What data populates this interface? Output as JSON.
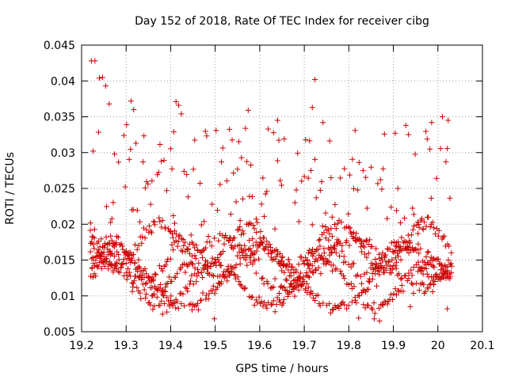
{
  "chart_data": {
    "type": "scatter",
    "title": "Day 152 of 2018, Rate Of TEC Index for receiver cibg",
    "xlabel": "GPS time / hours",
    "ylabel": "ROTI / TECUs",
    "xlim": [
      19.2,
      20.1
    ],
    "ylim": [
      0.005,
      0.045
    ],
    "xticks": [
      19.2,
      19.3,
      19.4,
      19.5,
      19.6,
      19.7,
      19.8,
      19.9,
      20,
      20.1
    ],
    "xtick_labels": [
      "19.2",
      "19.3",
      "19.4",
      "19.5",
      "19.6",
      "19.7",
      "19.8",
      "19.9",
      "20",
      "20.1"
    ],
    "yticks": [
      0.005,
      0.01,
      0.015,
      0.02,
      0.025,
      0.03,
      0.035,
      0.04,
      0.045
    ],
    "ytick_labels": [
      "0.005",
      "0.01",
      "0.015",
      "0.02",
      "0.025",
      "0.03",
      "0.035",
      "0.04",
      "0.045"
    ],
    "grid": "dotted",
    "marker": "plus",
    "marker_color": "#cc0000",
    "series": [
      {
        "name": "ROTI",
        "x_range": [
          19.22,
          20.03
        ],
        "x_step_hours": 0.003,
        "points": [
          {
            "x": 19.222,
            "y": 0.0428
          },
          {
            "x": 19.23,
            "y": 0.0428
          },
          {
            "x": 19.24,
            "y": 0.0404
          },
          {
            "x": 19.247,
            "y": 0.0405
          },
          {
            "x": 19.254,
            "y": 0.0393
          },
          {
            "x": 19.262,
            "y": 0.0368
          },
          {
            "x": 19.301,
            "y": 0.0339
          },
          {
            "x": 19.311,
            "y": 0.0372
          },
          {
            "x": 19.317,
            "y": 0.036
          },
          {
            "x": 19.322,
            "y": 0.0313
          },
          {
            "x": 19.338,
            "y": 0.0287
          },
          {
            "x": 19.412,
            "y": 0.0371
          },
          {
            "x": 19.418,
            "y": 0.0366
          },
          {
            "x": 19.424,
            "y": 0.0354
          },
          {
            "x": 19.407,
            "y": 0.0329
          },
          {
            "x": 19.574,
            "y": 0.0359
          },
          {
            "x": 19.64,
            "y": 0.0345
          },
          {
            "x": 19.718,
            "y": 0.0363
          },
          {
            "x": 19.724,
            "y": 0.0402
          },
          {
            "x": 19.742,
            "y": 0.0342
          },
          {
            "x": 19.986,
            "y": 0.0342
          },
          {
            "x": 20.01,
            "y": 0.035
          },
          {
            "x": 20.023,
            "y": 0.0345
          },
          {
            "x": 19.928,
            "y": 0.0338
          },
          {
            "x": 19.857,
            "y": 0.0068
          },
          {
            "x": 19.869,
            "y": 0.0065
          },
          {
            "x": 19.498,
            "y": 0.0068
          },
          {
            "x": 19.822,
            "y": 0.0069
          },
          {
            "x": 20.021,
            "y": 0.0082
          },
          {
            "x": 19.938,
            "y": 0.0085
          }
        ]
      }
    ]
  }
}
